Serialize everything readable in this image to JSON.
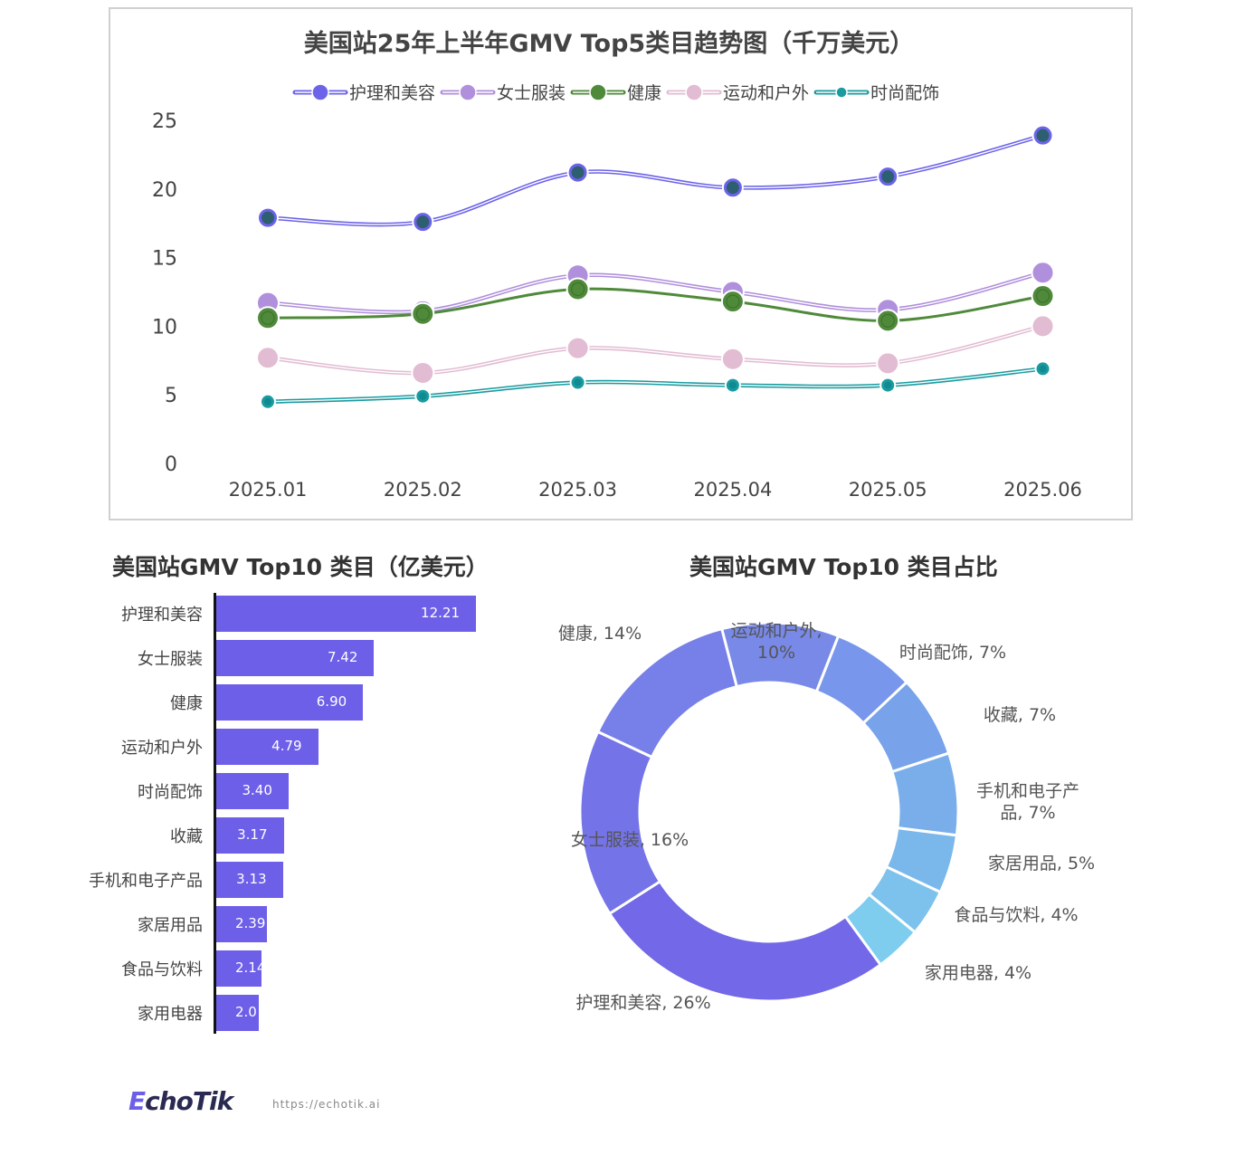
{
  "chart_data": [
    {
      "type": "line",
      "title": "美国站25年上半年GMV Top5类目趋势图（千万美元）",
      "categories": [
        "2025.01",
        "2025.02",
        "2025.03",
        "2025.04",
        "2025.05",
        "2025.06"
      ],
      "ylim": [
        0,
        25
      ],
      "yticks": [
        "0",
        "5",
        "10",
        "15",
        "20",
        "25"
      ],
      "grid": false,
      "legend": "top",
      "series": [
        {
          "name": "护理和美容",
          "color": "#6c63e8",
          "values": [
            17.9,
            17.6,
            21.2,
            20.1,
            20.9,
            23.9
          ]
        },
        {
          "name": "女士服装",
          "color": "#b08fdc",
          "values": [
            11.7,
            11.1,
            13.7,
            12.5,
            11.2,
            13.9
          ]
        },
        {
          "name": "健康",
          "color": "#4f8a3a",
          "values": [
            10.6,
            10.9,
            12.7,
            11.8,
            10.4,
            12.2
          ]
        },
        {
          "name": "运动和户外",
          "color": "#e2bcd2",
          "values": [
            7.7,
            6.6,
            8.4,
            7.6,
            7.3,
            10.0
          ]
        },
        {
          "name": "时尚配饰",
          "color": "#1a9ba0",
          "values": [
            4.5,
            4.9,
            5.9,
            5.7,
            5.7,
            6.9
          ]
        }
      ]
    },
    {
      "type": "bar",
      "orientation": "horizontal",
      "title": "美国站GMV Top10 类目（亿美元）",
      "color": "#6d5fe8",
      "categories": [
        "护理和美容",
        "女士服装",
        "健康",
        "运动和户外",
        "时尚配饰",
        "收藏",
        "手机和电子产品",
        "家居用品",
        "食品与饮料",
        "家用电器"
      ],
      "values": [
        12.21,
        7.42,
        6.9,
        4.79,
        3.4,
        3.17,
        3.13,
        2.39,
        2.14,
        2.0
      ],
      "labels": [
        "12.21",
        "7.42",
        "6.90",
        "4.79",
        "3.40",
        "3.17",
        "3.13",
        "2.39",
        "2.14",
        "2.0"
      ]
    },
    {
      "type": "pie",
      "donut": true,
      "title": "美国站GMV Top10 类目占比",
      "slices": [
        {
          "name": "运动和户外",
          "value": 10,
          "label": "运动和户外,",
          "label2": "10%",
          "color": "#7889e8"
        },
        {
          "name": "时尚配饰",
          "value": 7,
          "label": "时尚配饰, 7%",
          "color": "#7896ec"
        },
        {
          "name": "收藏",
          "value": 7,
          "label": "收藏, 7%",
          "color": "#78a2ea"
        },
        {
          "name": "手机和电子产品",
          "value": 7,
          "label": "手机和电子产",
          "label2": "品, 7%",
          "color": "#7aaeeb"
        },
        {
          "name": "家居用品",
          "value": 5,
          "label": "家居用品, 5%",
          "color": "#7ab8ec"
        },
        {
          "name": "食品与饮料",
          "value": 4,
          "label": "食品与饮料, 4%",
          "color": "#7cc2ec"
        },
        {
          "name": "家用电器",
          "value": 4,
          "label": "家用电器, 4%",
          "color": "#7ecdef"
        },
        {
          "name": "护理和美容",
          "value": 26,
          "label": "护理和美容, 26%",
          "color": "#7268e8"
        },
        {
          "name": "女士服装",
          "value": 16,
          "label": "女士服装, 16%",
          "color": "#7474e8"
        },
        {
          "name": "健康",
          "value": 14,
          "label": "健康, 14%",
          "color": "#777fe8"
        }
      ]
    }
  ],
  "footer": {
    "logo": "EchoTik",
    "url": "https://echotik.ai"
  }
}
